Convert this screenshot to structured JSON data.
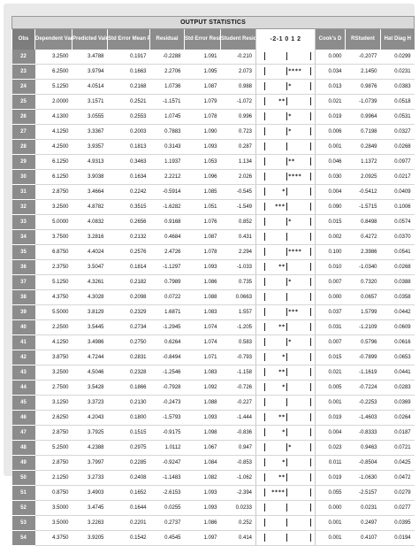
{
  "title": "OUTPUT STATISTICS",
  "headers": {
    "obs": "Obs",
    "dependent": "Dependent Variable",
    "predicted": "Predicted Value",
    "stderr": "Std Error Mean Predict",
    "residual": "Residual",
    "stderr_residual": "Std Error Residual",
    "student": "Student Residual",
    "plot": "-2-1 0 1 2",
    "cooks": "Cook's D",
    "rstudent": "RStudent",
    "hat": "Hat Diag H"
  },
  "rows": [
    {
      "obs": "22",
      "dep": "3.2500",
      "pred": "3.4788",
      "se": "0.1917",
      "res": "-0.2288",
      "ser": "1.091",
      "stud": "-0.210",
      "plot": "",
      "cook": "0.000",
      "rst": "-0.2077",
      "hat": "0.0299"
    },
    {
      "obs": "23",
      "dep": "6.2500",
      "pred": "3.9794",
      "se": "0.1663",
      "res": "2.2706",
      "ser": "1.095",
      "stud": "2.073",
      "plot": "****",
      "cook": "0.034",
      "rst": "2.1450",
      "hat": "0.0231"
    },
    {
      "obs": "24",
      "dep": "5.1250",
      "pred": "4.0514",
      "se": "0.2168",
      "res": "1.0736",
      "ser": "1.087",
      "stud": "0.988",
      "plot": "*",
      "cook": "0.013",
      "rst": "0.9876",
      "hat": "0.0383"
    },
    {
      "obs": "25",
      "dep": "2.0000",
      "pred": "3.1571",
      "se": "0.2521",
      "res": "-1.1571",
      "ser": "1.079",
      "stud": "-1.072",
      "plot": "**",
      "cook": "0.021",
      "rst": "-1.0739",
      "hat": "0.0518"
    },
    {
      "obs": "26",
      "dep": "4.1300",
      "pred": "3.0555",
      "se": "0.2553",
      "res": "1.0745",
      "ser": "1.078",
      "stud": "0.996",
      "plot": "*",
      "cook": "0.019",
      "rst": "0.9964",
      "hat": "0.0531"
    },
    {
      "obs": "27",
      "dep": "4.1250",
      "pred": "3.3367",
      "se": "0.2003",
      "res": "0.7883",
      "ser": "1.090",
      "stud": "0.723",
      "plot": "*",
      "cook": "0.006",
      "rst": "0.7198",
      "hat": "0.0327"
    },
    {
      "obs": "28",
      "dep": "4.2500",
      "pred": "3.9357",
      "se": "0.1813",
      "res": "0.3143",
      "ser": "1.093",
      "stud": "0.287",
      "plot": "",
      "cook": "0.001",
      "rst": "0.2849",
      "hat": "0.0268"
    },
    {
      "obs": "29",
      "dep": "6.1250",
      "pred": "4.9313",
      "se": "0.3463",
      "res": "1.1937",
      "ser": "1.053",
      "stud": "1.134",
      "plot": "**",
      "cook": "0.046",
      "rst": "1.1372",
      "hat": "0.0977"
    },
    {
      "obs": "30",
      "dep": "6.1250",
      "pred": "3.9038",
      "se": "0.1634",
      "res": "2.2212",
      "ser": "1.096",
      "stud": "2.026",
      "plot": "****",
      "cook": "0.030",
      "rst": "2.0925",
      "hat": "0.0217"
    },
    {
      "obs": "31",
      "dep": "2.8750",
      "pred": "3.4664",
      "se": "0.2242",
      "res": "-0.5914",
      "ser": "1.085",
      "stud": "-0.545",
      "plot": "*",
      "cook": "0.004",
      "rst": "-0.5412",
      "hat": "0.0409"
    },
    {
      "obs": "32",
      "dep": "3.2500",
      "pred": "4.8782",
      "se": "0.3515",
      "res": "-1.6282",
      "ser": "1.051",
      "stud": "-1.549",
      "plot": "***",
      "cook": "0.090",
      "rst": "-1.5715",
      "hat": "0.1006"
    },
    {
      "obs": "33",
      "dep": "5.0000",
      "pred": "4.0832",
      "se": "0.2656",
      "res": "0.9168",
      "ser": "1.076",
      "stud": "0.852",
      "plot": "*",
      "cook": "0.015",
      "rst": "0.8498",
      "hat": "0.0574"
    },
    {
      "obs": "34",
      "dep": "3.7500",
      "pred": "3.2816",
      "se": "0.2132",
      "res": "0.4684",
      "ser": "1.087",
      "stud": "0.431",
      "plot": "",
      "cook": "0.002",
      "rst": "0.4272",
      "hat": "0.0370"
    },
    {
      "obs": "35",
      "dep": "6.8750",
      "pred": "4.4024",
      "se": "0.2576",
      "res": "2.4726",
      "ser": "1.078",
      "stud": "2.294",
      "plot": "****",
      "cook": "0.100",
      "rst": "2.3986",
      "hat": "0.0541"
    },
    {
      "obs": "36",
      "dep": "2.3750",
      "pred": "3.5047",
      "se": "0.1814",
      "res": "-1.1297",
      "ser": "1.093",
      "stud": "-1.033",
      "plot": "**",
      "cook": "0.010",
      "rst": "-1.0340",
      "hat": "0.0268"
    },
    {
      "obs": "37",
      "dep": "5.1250",
      "pred": "4.3261",
      "se": "0.2182",
      "res": "0.7989",
      "ser": "1.086",
      "stud": "0.735",
      "plot": "*",
      "cook": "0.007",
      "rst": "0.7320",
      "hat": "0.0388"
    },
    {
      "obs": "38",
      "dep": "4.3750",
      "pred": "4.3028",
      "se": "0.2098",
      "res": "0.0722",
      "ser": "1.088",
      "stud": "0.0663",
      "plot": "",
      "cook": "0.000",
      "rst": "0.0657",
      "hat": "0.0358"
    },
    {
      "obs": "39",
      "dep": "5.5000",
      "pred": "3.8129",
      "se": "0.2329",
      "res": "1.6871",
      "ser": "1.083",
      "stud": "1.557",
      "plot": "***",
      "cook": "0.037",
      "rst": "1.5799",
      "hat": "0.0442"
    },
    {
      "obs": "40",
      "dep": "2.2500",
      "pred": "3.5445",
      "se": "0.2734",
      "res": "-1.2945",
      "ser": "1.074",
      "stud": "-1.205",
      "plot": "**",
      "cook": "0.031",
      "rst": "-1.2109",
      "hat": "0.0609"
    },
    {
      "obs": "41",
      "dep": "4.1250",
      "pred": "3.4986",
      "se": "0.2750",
      "res": "0.6264",
      "ser": "1.074",
      "stud": "0.583",
      "plot": "*",
      "cook": "0.007",
      "rst": "0.5796",
      "hat": "0.0616"
    },
    {
      "obs": "42",
      "dep": "3.8750",
      "pred": "4.7244",
      "se": "0.2831",
      "res": "-0.8494",
      "ser": "1.071",
      "stud": "-0.793",
      "plot": "*",
      "cook": "0.015",
      "rst": "-0.7899",
      "hat": "0.0653"
    },
    {
      "obs": "43",
      "dep": "3.2500",
      "pred": "4.5046",
      "se": "0.2328",
      "res": "-1.2546",
      "ser": "1.083",
      "stud": "-1.158",
      "plot": "**",
      "cook": "0.021",
      "rst": "-1.1619",
      "hat": "0.0441"
    },
    {
      "obs": "44",
      "dep": "2.7500",
      "pred": "3.5428",
      "se": "0.1866",
      "res": "-0.7928",
      "ser": "1.092",
      "stud": "-0.726",
      "plot": "*",
      "cook": "0.005",
      "rst": "-0.7224",
      "hat": "0.0283"
    },
    {
      "obs": "45",
      "dep": "3.1250",
      "pred": "3.3723",
      "se": "0.2130",
      "res": "-0.2473",
      "ser": "1.088",
      "stud": "-0.227",
      "plot": "",
      "cook": "0.001",
      "rst": "-0.2253",
      "hat": "0.0369"
    },
    {
      "obs": "46",
      "dep": "2.6250",
      "pred": "4.2043",
      "se": "0.1800",
      "res": "-1.5793",
      "ser": "1.093",
      "stud": "-1.444",
      "plot": "**",
      "cook": "0.019",
      "rst": "-1.4603",
      "hat": "0.0264"
    },
    {
      "obs": "47",
      "dep": "2.8750",
      "pred": "3.7925",
      "se": "0.1515",
      "res": "-0.9175",
      "ser": "1.098",
      "stud": "-0.836",
      "plot": "*",
      "cook": "0.004",
      "rst": "-0.8333",
      "hat": "0.0187"
    },
    {
      "obs": "48",
      "dep": "5.2500",
      "pred": "4.2388",
      "se": "0.2975",
      "res": "1.0112",
      "ser": "1.067",
      "stud": "0.947",
      "plot": "*",
      "cook": "0.023",
      "rst": "0.9463",
      "hat": "0.0721"
    },
    {
      "obs": "49",
      "dep": "2.8750",
      "pred": "3.7997",
      "se": "0.2285",
      "res": "-0.9247",
      "ser": "1.084",
      "stud": "-0.853",
      "plot": "*",
      "cook": "0.011",
      "rst": "-0.8504",
      "hat": "0.0425"
    },
    {
      "obs": "50",
      "dep": "2.1250",
      "pred": "3.2733",
      "se": "0.2408",
      "res": "-1.1483",
      "ser": "1.082",
      "stud": "-1.062",
      "plot": "**",
      "cook": "0.019",
      "rst": "-1.0630",
      "hat": "0.0472"
    },
    {
      "obs": "51",
      "dep": "0.8750",
      "pred": "3.4903",
      "se": "0.1652",
      "res": "-2.6153",
      "ser": "1.093",
      "stud": "-2.394",
      "plot": "****",
      "cook": "0.055",
      "rst": "-2.5157",
      "hat": "0.0279"
    },
    {
      "obs": "52",
      "dep": "3.5000",
      "pred": "3.4745",
      "se": "0.1644",
      "res": "0.0255",
      "ser": "1.093",
      "stud": "0.0233",
      "plot": "",
      "cook": "0.000",
      "rst": "0.0231",
      "hat": "0.0277"
    },
    {
      "obs": "53",
      "dep": "3.5000",
      "pred": "3.2263",
      "se": "0.2201",
      "res": "0.2737",
      "ser": "1.086",
      "stud": "0.252",
      "plot": "",
      "cook": "0.001",
      "rst": "0.2497",
      "hat": "0.0395"
    },
    {
      "obs": "54",
      "dep": "4.3750",
      "pred": "3.9205",
      "se": "0.1542",
      "res": "0.4545",
      "ser": "1.097",
      "stud": "0.414",
      "plot": "",
      "cook": "0.001",
      "rst": "0.4107",
      "hat": "0.0194"
    }
  ]
}
